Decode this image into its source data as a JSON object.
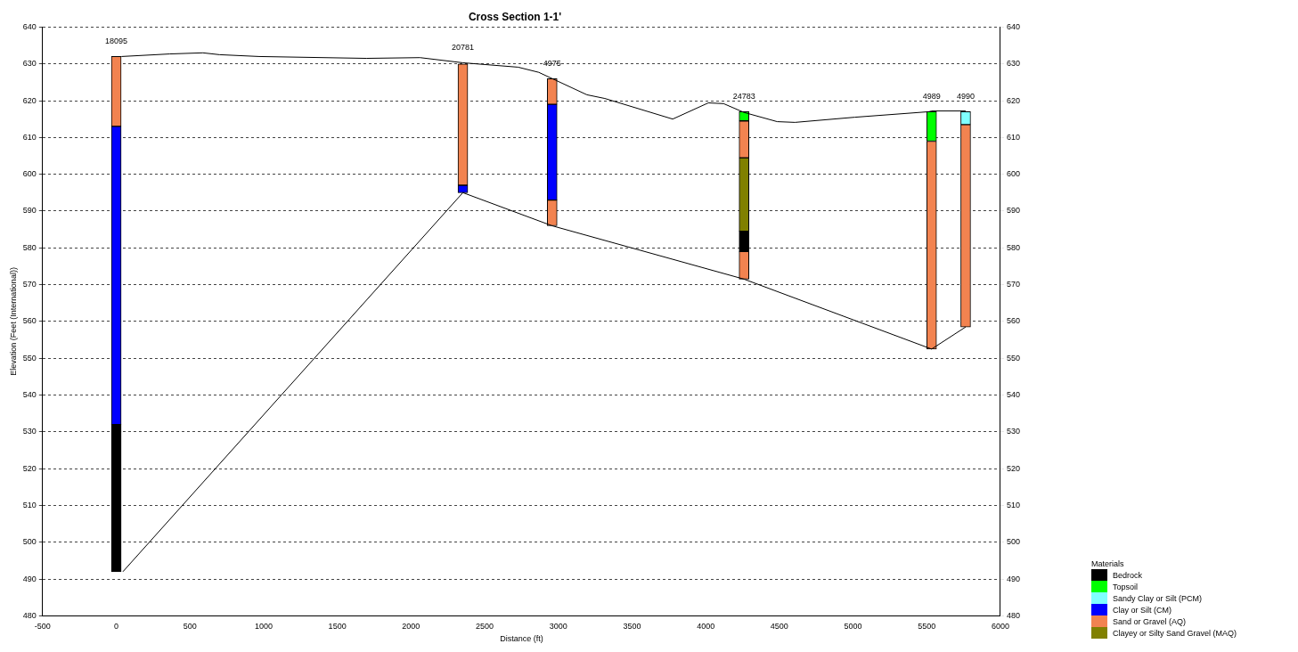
{
  "chart_data": {
    "type": "bar",
    "title": "Cross Section 1-1'",
    "xlabel": "Distance (ft)",
    "ylabel": "Elevation (Feet (International))",
    "x": [
      0,
      2352,
      2958,
      4260,
      5533,
      5764
    ],
    "xlim": [
      -500,
      6000
    ],
    "xticks": [
      -500,
      0,
      500,
      1000,
      1500,
      2000,
      2500,
      3000,
      3500,
      4000,
      4500,
      5000,
      5500,
      6000
    ],
    "ylim": [
      480,
      640
    ],
    "yticks": [
      480,
      490,
      500,
      510,
      520,
      530,
      540,
      550,
      560,
      570,
      580,
      590,
      600,
      610,
      620,
      630,
      640
    ],
    "y2lim": [
      480,
      640
    ],
    "y2ticks": [
      480,
      490,
      500,
      510,
      520,
      530,
      540,
      550,
      560,
      570,
      580,
      590,
      600,
      610,
      620,
      630,
      640
    ],
    "grid": "y",
    "legend": "bottom right",
    "legend_title": "Materials",
    "series": [
      {
        "name": "Bedrock",
        "color": "#000000",
        "base": [
          492,
          null,
          null,
          579,
          null,
          null
        ],
        "values": [
          40,
          null,
          null,
          5.5,
          null,
          null
        ]
      },
      {
        "name": "Topsoil",
        "color": "#00ff00",
        "base": [
          null,
          null,
          null,
          614.5,
          609,
          null
        ],
        "values": [
          null,
          null,
          null,
          2.5,
          8,
          null
        ]
      },
      {
        "name": "Sandy Clay or Silt (PCM)",
        "color": "#80ffff",
        "base": [
          null,
          null,
          null,
          null,
          null,
          613.5
        ],
        "values": [
          null,
          null,
          null,
          null,
          null,
          3.5
        ]
      },
      {
        "name": "Clay or Silt (CM)",
        "color": "#0000ff",
        "base": [
          532,
          595,
          593,
          null,
          null,
          null
        ],
        "values": [
          81,
          2,
          26,
          null,
          null,
          null
        ]
      },
      {
        "name": "Sand or Gravel (AQ)",
        "color": "#f28350",
        "base": [
          613,
          597,
          619,
          604.5,
          552.5,
          558.5
        ],
        "values": [
          19,
          33,
          7,
          10,
          56.5,
          55
        ]
      },
      {
        "name": "Clayey or Silty Sand Gravel (MAQ)",
        "color": "#808000",
        "base": [
          null,
          null,
          null,
          584.5,
          null,
          null
        ],
        "values": [
          null,
          null,
          null,
          20,
          null,
          null
        ]
      },
      {
        "color": "#f28350",
        "base": [
          null,
          null,
          586,
          571.5,
          null,
          null
        ],
        "values": [
          null,
          null,
          7,
          7.5,
          null,
          null
        ]
      },
      {
        "type": "line",
        "color": "#000000",
        "x": [
          35,
          364,
          588,
          700,
          970,
          1697,
          2061,
          2352,
          2727,
          2867,
          2958,
          3194,
          3315,
          3776,
          4018,
          4121,
          4260,
          4485,
          4606,
          5012,
          5515,
          5533,
          5764
        ],
        "values": [
          632,
          632.7,
          633,
          632.5,
          632,
          631.5,
          631.7,
          630.3,
          629.1,
          627.7,
          626,
          621.6,
          620.6,
          615,
          619.4,
          619.2,
          616.8,
          614.3,
          614.1,
          615.5,
          617,
          617.2,
          617.2
        ]
      },
      {
        "type": "line",
        "color": "#000000",
        "x": [
          45,
          2352,
          2958,
          4260,
          5533,
          5764
        ],
        "values": [
          492,
          595,
          586,
          571.5,
          552.5,
          558.5
        ]
      }
    ],
    "annotations": [
      {
        "text": "18095",
        "x": 0,
        "y": 632
      },
      {
        "text": "20781",
        "x": 2352,
        "y": 630.3
      },
      {
        "text": "4975",
        "x": 2958,
        "y": 626
      },
      {
        "text": "24783",
        "x": 4260,
        "y": 617
      },
      {
        "text": "4989",
        "x": 5533,
        "y": 617.2
      },
      {
        "text": "4990",
        "x": 5764,
        "y": 617.2
      }
    ]
  }
}
